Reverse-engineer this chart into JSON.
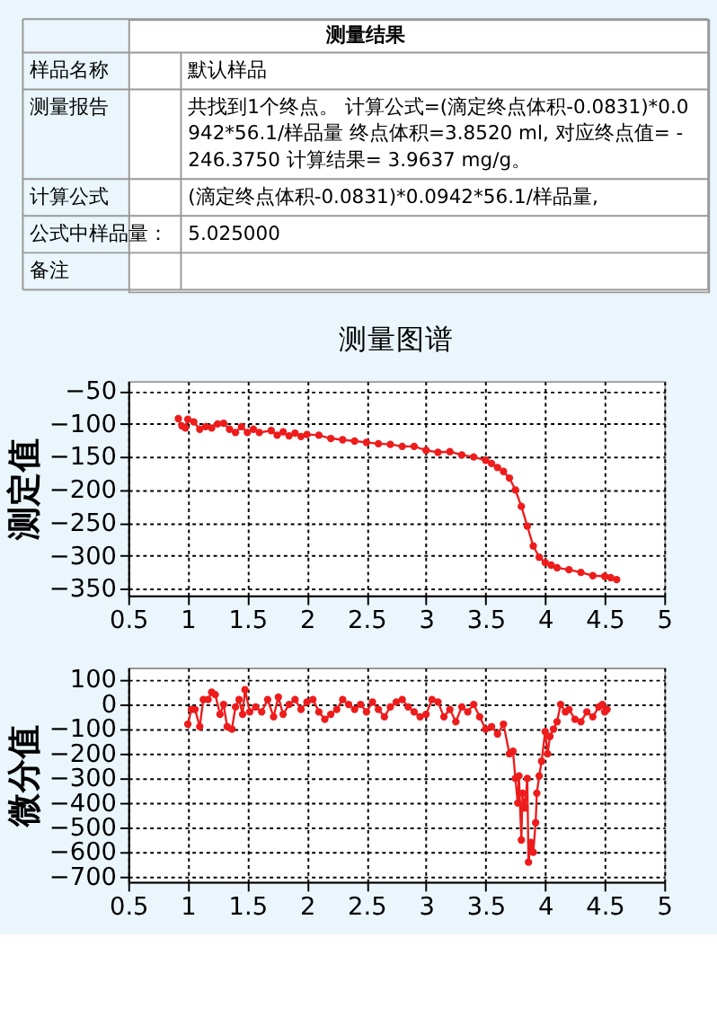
{
  "chart_data": [
    {
      "type": "other",
      "title": "测量结果",
      "annotations": [
        "样品名称",
        "默认样品",
        "测量报告",
        "共找到1个终点。 计算公式=(滴定终点体积-0.0831)*0.0942*56.1/样品量 终点体积=3.8520 ml, 对应终点值= -246.3750 计算结果= 3.9637 mg/g。",
        "计算公式",
        "(滴定终点体积-0.0831)*0.0942*56.1/样品量,",
        "公式中样品量：",
        "5.025000",
        "备注"
      ]
    },
    {
      "type": "line",
      "title": "测量图谱",
      "ylabel": "测定值",
      "xlim": [
        0.5,
        5
      ],
      "xticks": [
        0.5,
        1,
        1.5,
        2,
        2.5,
        3,
        3.5,
        4,
        4.5,
        5
      ],
      "ylim": [
        -360,
        -35
      ],
      "yticks": [
        -50,
        -100,
        -150,
        -200,
        -250,
        -300,
        -350
      ],
      "grid": true,
      "marker": "circle",
      "line_style": "solid",
      "legend": false,
      "series": [
        {
          "color": "#ee1c1c",
          "x": [
            0.92,
            0.95,
            0.98,
            1.0,
            1.05,
            1.1,
            1.15,
            1.2,
            1.25,
            1.3,
            1.35,
            1.4,
            1.45,
            1.5,
            1.55,
            1.6,
            1.7,
            1.75,
            1.8,
            1.85,
            1.9,
            1.95,
            2.0,
            2.1,
            2.2,
            2.3,
            2.4,
            2.5,
            2.6,
            2.7,
            2.8,
            2.9,
            3.0,
            3.1,
            3.2,
            3.3,
            3.4,
            3.5,
            3.55,
            3.6,
            3.65,
            3.7,
            3.75,
            3.8,
            3.85,
            3.9,
            3.95,
            4.0,
            4.05,
            4.1,
            4.2,
            4.3,
            4.4,
            4.5,
            4.55,
            4.6
          ],
          "values": [
            -92,
            -103,
            -106,
            -93,
            -97,
            -108,
            -104,
            -106,
            -100,
            -99,
            -108,
            -113,
            -104,
            -113,
            -108,
            -113,
            -110,
            -117,
            -112,
            -118,
            -114,
            -119,
            -116,
            -117,
            -122,
            -124,
            -126,
            -128,
            -130,
            -131,
            -134,
            -134,
            -140,
            -143,
            -142,
            -147,
            -150,
            -155,
            -160,
            -166,
            -172,
            -182,
            -200,
            -225,
            -255,
            -285,
            -302,
            -310,
            -314,
            -318,
            -321,
            -325,
            -330,
            -331,
            -333,
            -336
          ]
        }
      ]
    },
    {
      "type": "line",
      "ylabel": "微分值",
      "xlim": [
        0.5,
        5
      ],
      "xticks": [
        0.5,
        1,
        1.5,
        2,
        2.5,
        3,
        3.5,
        4,
        4.5,
        5
      ],
      "ylim": [
        -720,
        150
      ],
      "yticks": [
        100,
        0,
        -100,
        -200,
        -300,
        -400,
        -500,
        -600,
        -700
      ],
      "grid": true,
      "marker": "circle",
      "line_style": "solid",
      "legend": false,
      "series": [
        {
          "color": "#ee1c1c",
          "x": [
            1.0,
            1.03,
            1.06,
            1.1,
            1.13,
            1.17,
            1.2,
            1.23,
            1.27,
            1.3,
            1.33,
            1.37,
            1.4,
            1.43,
            1.46,
            1.48,
            1.52,
            1.57,
            1.62,
            1.67,
            1.72,
            1.76,
            1.8,
            1.85,
            1.9,
            1.95,
            2.0,
            2.05,
            2.1,
            2.15,
            2.2,
            2.25,
            2.3,
            2.35,
            2.4,
            2.45,
            2.5,
            2.55,
            2.6,
            2.65,
            2.7,
            2.75,
            2.8,
            2.85,
            2.9,
            2.95,
            3.0,
            3.05,
            3.1,
            3.15,
            3.2,
            3.25,
            3.3,
            3.35,
            3.4,
            3.45,
            3.5,
            3.55,
            3.6,
            3.65,
            3.7,
            3.73,
            3.75,
            3.77,
            3.78,
            3.8,
            3.81,
            3.83,
            3.85,
            3.86,
            3.88,
            3.9,
            3.92,
            3.93,
            3.95,
            3.97,
            4.0,
            4.02,
            4.04,
            4.07,
            4.1,
            4.13,
            4.17,
            4.2,
            4.25,
            4.3,
            4.35,
            4.4,
            4.45,
            4.48,
            4.5,
            4.52
          ],
          "values": [
            -80,
            -20,
            -20,
            -90,
            20,
            20,
            50,
            40,
            -40,
            0,
            -90,
            -100,
            -10,
            20,
            -40,
            60,
            -30,
            -10,
            -30,
            20,
            -50,
            30,
            -40,
            0,
            20,
            -20,
            10,
            20,
            -30,
            -60,
            -40,
            -20,
            20,
            0,
            -20,
            0,
            -30,
            10,
            -20,
            -50,
            -10,
            10,
            20,
            -10,
            -30,
            -50,
            -40,
            20,
            10,
            -50,
            -20,
            -70,
            -10,
            -30,
            0,
            -50,
            -100,
            -90,
            -120,
            -80,
            -200,
            -190,
            -300,
            -400,
            -290,
            -550,
            -360,
            -420,
            -300,
            -640,
            -560,
            -600,
            -480,
            -360,
            -290,
            -230,
            -110,
            -200,
            -130,
            -100,
            -70,
            0,
            -30,
            -20,
            -60,
            -70,
            -30,
            -50,
            -10,
            0,
            -30,
            -20
          ]
        }
      ]
    }
  ]
}
